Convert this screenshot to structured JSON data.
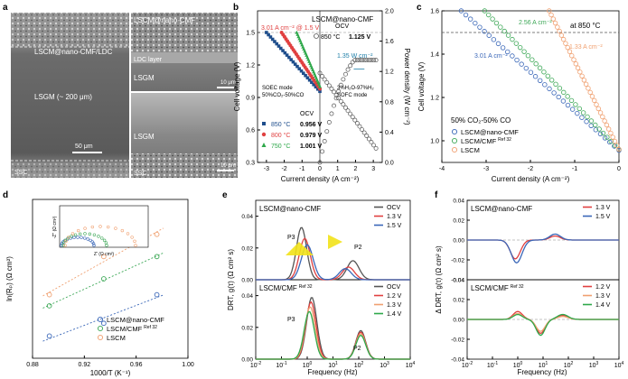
{
  "panels": {
    "a": {
      "letter": "a",
      "label_cross_section": "LSCM@nano-CMF/LDC",
      "label_lsgm_thick": "LSGM (~ 200 μm)",
      "scale_main": "50 μm",
      "label_ssc": "SSC",
      "label_top_electrode": "LSCM@nano-CMF",
      "label_ldc": "LDC layer",
      "label_lsgm_1": "LSGM",
      "scale_1": "10 μm",
      "label_lsgm_2": "LSGM",
      "label_ssc_2": "SSC",
      "scale_2": "10 μm"
    },
    "b": {
      "letter": "b",
      "chart_title": "LSCM@nano-CMF",
      "annotation_soec": "3.01 A cm⁻² @ 1.5 V",
      "annotation_sofc": "1.35 W cm⁻²",
      "soec_mode": "SOEC mode",
      "soec_gas": "50%CO₂-50%CO",
      "sofc_gas": "3%H₂O-97%H₂",
      "sofc_mode": "SOFC mode",
      "ocv_left_title": "OCV",
      "ocv_right_title": "OCV",
      "legend_left": [
        {
          "temp": "850 °C",
          "ocv": "0.956 V",
          "color": "#1f4e8c"
        },
        {
          "temp": "800 °C",
          "ocv": "0.979 V",
          "color": "#e04040"
        },
        {
          "temp": "750 °C",
          "ocv": "1.001 V",
          "color": "#2ea84a"
        }
      ],
      "legend_right": {
        "temp": "850 °C",
        "ocv": "1.125 V"
      },
      "xlabel": "Current density (A cm⁻²)",
      "ylabel": "Cell voltage (V)",
      "y2label": "Power density (W cm⁻²)"
    },
    "c": {
      "letter": "c",
      "annotation_temp": "at 850 °C",
      "ann_blue": "3.01 A cm⁻²",
      "ann_green": "2.56 A cm⁻²",
      "ann_orange": "1.33 A cm⁻²",
      "gas": "50% CO₂-50% CO",
      "legend": [
        "LSCM@nano-CMF",
        "LSCM/CMF",
        "LSCM"
      ],
      "legend_ref": "Ref 32",
      "xlabel": "Current density (A cm⁻²)",
      "ylabel": "Cell voltage (V)"
    },
    "d": {
      "letter": "d",
      "legend": [
        "LSCM@nano-CMF",
        "LSCM/CMF",
        "LSCM"
      ],
      "legend_ref": "Ref 32",
      "xlabel": "1000/T (K⁻¹)",
      "ylabel": "ln(Rₚ) (Ω cm²)",
      "inset_xlabel": "Z' (Ω cm²)",
      "inset_ylabel": "-Z'' (Ω cm²)"
    },
    "e": {
      "letter": "e",
      "top_title": "LSCM@nano-CMF",
      "bottom_title": "LSCM/CMF",
      "bottom_ref": "Ref 32",
      "top_legend": [
        "OCV",
        "1.3 V",
        "1.5 V"
      ],
      "bottom_legend": [
        "OCV",
        "1.2 V",
        "1.3 V",
        "1.4 V"
      ],
      "peak_p3": "P3",
      "peak_p2": "P2",
      "xlabel": "Frequency (Hz)",
      "ylabel": "DRT, g(τ) (Ω cm² s)"
    },
    "f": {
      "letter": "f",
      "top_title": "LSCM@nano-CMF",
      "bottom_title": "LSCM/CMF",
      "bottom_ref": "Ref 32",
      "top_legend": [
        "1.3 V",
        "1.5 V"
      ],
      "bottom_legend": [
        "1.2 V",
        "1.3 V",
        "1.4 V"
      ],
      "xlabel": "Frequency (Hz)",
      "ylabel": "Δ DRT, g(τ) (Ω cm² s)"
    }
  },
  "chart_data": [
    {
      "panel": "b",
      "type": "scatter",
      "xlabel": "Current density (A cm⁻²)",
      "ylabel": "Cell voltage (V)",
      "y2label": "Power density (W cm⁻²)",
      "xlim": [
        -3.5,
        3.5
      ],
      "ylim": [
        0.3,
        1.7
      ],
      "y2lim": [
        0.0,
        2.0
      ],
      "xticks": [
        -3,
        -2,
        -1,
        0,
        1,
        2,
        3
      ],
      "yticks": [
        0.3,
        0.6,
        0.9,
        1.2,
        1.5
      ],
      "y2ticks": [
        0.0,
        0.4,
        0.8,
        1.2,
        1.6,
        2.0
      ],
      "series": [
        {
          "name": "850 °C SOEC",
          "x0": -3.0,
          "x1": 0.0,
          "y0": 1.5,
          "y1": 0.956,
          "color": "#1f4e8c"
        },
        {
          "name": "800 °C SOEC",
          "x0": -2.15,
          "x1": 0.0,
          "y0": 1.5,
          "y1": 0.979,
          "color": "#e04040"
        },
        {
          "name": "750 °C SOEC",
          "x0": -1.3,
          "x1": 0.0,
          "y0": 1.5,
          "y1": 1.001,
          "color": "#2ea84a"
        },
        {
          "name": "850 °C SOFC voltage",
          "x0": 0.0,
          "x1": 3.15,
          "y0": 1.125,
          "y1": 0.43,
          "color": "#555555"
        },
        {
          "name": "850 °C SOFC power",
          "peak_x": 2.6,
          "peak_p": 1.35,
          "color": "#555555"
        }
      ]
    },
    {
      "panel": "c",
      "type": "scatter",
      "xlabel": "Current density (A cm⁻²)",
      "ylabel": "Cell voltage (V)",
      "xlim": [
        -4,
        0
      ],
      "ylim": [
        0.9,
        1.6
      ],
      "xticks": [
        -4,
        -3,
        -2,
        -1,
        0
      ],
      "yticks": [
        1.0,
        1.2,
        1.4,
        1.6
      ],
      "reference_line": 1.5,
      "series": [
        {
          "name": "LSCM@nano-CMF",
          "x_at_1p5": -3.01,
          "x_at_1p6": -3.6,
          "y_at_0": 0.956,
          "color": "#3a67b8"
        },
        {
          "name": "LSCM/CMF",
          "x_at_1p5": -2.56,
          "x_at_1p6": -3.0,
          "y_at_0": 0.96,
          "color": "#3da857"
        },
        {
          "name": "LSCM",
          "x_at_1p5": -1.33,
          "x_at_1p6": -1.5,
          "y_at_0": 0.96,
          "color": "#f0a070"
        }
      ]
    },
    {
      "panel": "d",
      "type": "scatter",
      "xlabel": "1000/T (K⁻¹)",
      "ylabel": "ln(Rₚ) (Ω cm²)",
      "xlim": [
        0.88,
        1.0
      ],
      "ylim": [
        -3.0,
        2.0
      ],
      "xticks": [
        0.88,
        0.92,
        0.96,
        1.0
      ],
      "series": [
        {
          "name": "LSCM@nano-CMF",
          "x": [
            0.893,
            0.935,
            0.976
          ],
          "y": [
            -2.3,
            -1.9,
            -1.0
          ],
          "color": "#3a67b8"
        },
        {
          "name": "LSCM/CMF",
          "x": [
            0.893,
            0.935,
            0.976
          ],
          "y": [
            -1.35,
            -0.5,
            0.2
          ],
          "color": "#3da857"
        },
        {
          "name": "LSCM",
          "x": [
            0.893,
            0.935,
            0.976
          ],
          "y": [
            -1.0,
            0.2,
            0.9
          ],
          "color": "#f0a070"
        }
      ]
    },
    {
      "panel": "e",
      "type": "line",
      "xlabel": "Frequency (Hz)",
      "ylabel": "DRT, g(τ) (Ω cm² s)",
      "xscale": "log",
      "xlim": [
        0.01,
        10000
      ],
      "xticks_exp": [
        -2,
        -1,
        0,
        1,
        2,
        3,
        4
      ],
      "top": {
        "ylim": [
          0,
          0.05
        ],
        "yticks": [
          0.0,
          0.02,
          0.04
        ],
        "series": [
          {
            "name": "OCV",
            "color": "#555555",
            "peaks": [
              [
                0.6,
                0.033,
                0.28
              ],
              [
                60,
                0.012,
                0.33
              ]
            ]
          },
          {
            "name": "1.3 V",
            "color": "#e04040",
            "peaks": [
              [
                0.8,
                0.026,
                0.3
              ],
              [
                40,
                0.008,
                0.33
              ]
            ]
          },
          {
            "name": "1.5 V",
            "color": "#3a67b8",
            "peaks": [
              [
                1.0,
                0.022,
                0.32
              ],
              [
                30,
                0.007,
                0.33
              ]
            ]
          }
        ]
      },
      "bottom": {
        "ylim": [
          0,
          0.05
        ],
        "yticks": [
          0.0,
          0.02,
          0.04
        ],
        "series": [
          {
            "name": "OCV",
            "color": "#555555",
            "peaks": [
              [
                1.5,
                0.039,
                0.28
              ],
              [
                120,
                0.018,
                0.27
              ]
            ]
          },
          {
            "name": "1.2 V",
            "color": "#e04040",
            "peaks": [
              [
                1.4,
                0.036,
                0.28
              ],
              [
                120,
                0.017,
                0.27
              ]
            ]
          },
          {
            "name": "1.3 V",
            "color": "#f0a070",
            "peaks": [
              [
                1.3,
                0.033,
                0.28
              ],
              [
                120,
                0.016,
                0.27
              ]
            ]
          },
          {
            "name": "1.4 V",
            "color": "#2ea84a",
            "peaks": [
              [
                1.2,
                0.03,
                0.28
              ],
              [
                120,
                0.015,
                0.27
              ]
            ]
          }
        ]
      }
    },
    {
      "panel": "f",
      "type": "line",
      "xlabel": "Frequency (Hz)",
      "ylabel": "Δ DRT, g(τ) (Ω cm² s)",
      "xscale": "log",
      "xlim": [
        0.01,
        10000
      ],
      "xticks_exp": [
        -2,
        -1,
        0,
        1,
        2,
        3,
        4
      ],
      "top": {
        "ylim": [
          -0.04,
          0.04
        ],
        "yticks": [
          -0.04,
          -0.02,
          0.0,
          0.02,
          0.04
        ],
        "series": [
          {
            "name": "1.3 V",
            "color": "#e04040",
            "peaks": [
              [
                0.8,
                -0.019,
                0.28
              ],
              [
                30,
                0.004,
                0.3
              ]
            ]
          },
          {
            "name": "1.5 V",
            "color": "#3a67b8",
            "peaks": [
              [
                0.9,
                -0.023,
                0.3
              ],
              [
                30,
                0.006,
                0.3
              ]
            ]
          }
        ]
      },
      "bottom": {
        "ylim": [
          -0.04,
          0.04
        ],
        "yticks": [
          -0.04,
          -0.02,
          0.0,
          0.02,
          0.04
        ],
        "series": [
          {
            "name": "1.2 V",
            "color": "#e04040",
            "peaks": [
              [
                1.0,
                0.008,
                0.26
              ],
              [
                8,
                -0.014,
                0.25
              ],
              [
                60,
                0.004,
                0.3
              ]
            ]
          },
          {
            "name": "1.3 V",
            "color": "#f0a070",
            "peaks": [
              [
                1.0,
                0.006,
                0.26
              ],
              [
                8,
                -0.012,
                0.25
              ],
              [
                60,
                0.003,
                0.3
              ]
            ]
          },
          {
            "name": "1.4 V",
            "color": "#2ea84a",
            "peaks": [
              [
                1.0,
                0.005,
                0.26
              ],
              [
                8,
                -0.016,
                0.25
              ],
              [
                60,
                0.005,
                0.3
              ]
            ]
          }
        ]
      }
    }
  ]
}
